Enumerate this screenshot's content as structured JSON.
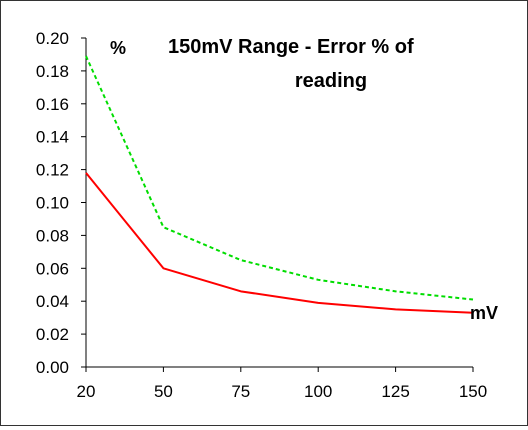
{
  "chart_data": {
    "type": "line",
    "title_line1": "150mV Range - Error % of",
    "title_line2": "reading",
    "ylabel": "%",
    "xlabel": "mV",
    "x": [
      20,
      50,
      75,
      100,
      125,
      150
    ],
    "x_tick_labels": [
      "20",
      "50",
      "75",
      "100",
      "125",
      "150"
    ],
    "ylim": [
      0,
      0.2
    ],
    "y_ticks": [
      0.0,
      0.02,
      0.04,
      0.06,
      0.08,
      0.1,
      0.12,
      0.14,
      0.16,
      0.18,
      0.2
    ],
    "y_tick_labels": [
      "0.00",
      "0.02",
      "0.04",
      "0.06",
      "0.08",
      "0.10",
      "0.12",
      "0.14",
      "0.16",
      "0.18",
      "0.20"
    ],
    "series": [
      {
        "color": "#ff0000",
        "style": "solid",
        "values": [
          0.118,
          0.06,
          0.046,
          0.039,
          0.035,
          0.033
        ]
      },
      {
        "color": "#00dd00",
        "style": "dashed",
        "values": [
          0.189,
          0.085,
          0.065,
          0.053,
          0.046,
          0.041
        ]
      }
    ],
    "grid": false,
    "legend": false
  }
}
